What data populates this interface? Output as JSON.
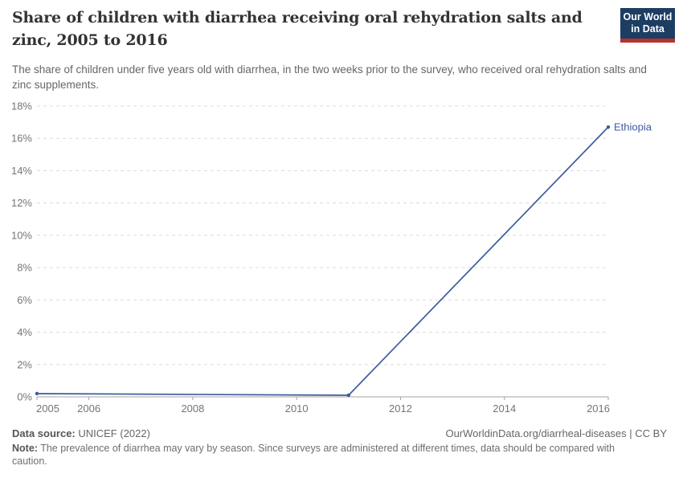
{
  "header": {
    "title": "Share of children with diarrhea receiving oral rehydration salts and zinc, 2005 to 2016",
    "subtitle": "The share of children under five years old with diarrhea, in the two weeks prior to the survey, who received oral rehydration salts and zinc supplements.",
    "logo": {
      "line1": "Our World",
      "line2": "in Data"
    }
  },
  "chart_data": {
    "type": "line",
    "title": "Share of children with diarrhea receiving oral rehydration salts and zinc, 2005 to 2016",
    "xlabel": "",
    "ylabel": "",
    "xlim": [
      2005,
      2016
    ],
    "ylim": [
      0,
      18
    ],
    "x_ticks": [
      2005,
      2006,
      2008,
      2010,
      2012,
      2014,
      2016
    ],
    "y_ticks": [
      0,
      2,
      4,
      6,
      8,
      10,
      12,
      14,
      16,
      18
    ],
    "y_tick_suffix": "%",
    "grid": "horizontal-dashed",
    "legend": "end-of-line-label",
    "series": [
      {
        "name": "Ethiopia",
        "color": "#3d5c9d",
        "points": [
          {
            "x": 2005,
            "y": 0.2
          },
          {
            "x": 2011,
            "y": 0.1
          },
          {
            "x": 2016,
            "y": 16.7
          }
        ]
      }
    ]
  },
  "footer": {
    "source_label": "Data source:",
    "source_value": " UNICEF (2022)",
    "link": "OurWorldinData.org/diarrheal-diseases | CC BY",
    "note_label": "Note:",
    "note_value": " The prevalence of diarrhea may vary by season. Since surveys are administered at different times, data should be compared with caution."
  },
  "colors": {
    "line": "#3d5c9d",
    "grid": "#dcdcdc",
    "axis": "#a3a3a3",
    "tick_text": "#757575",
    "logo_bg": "#1d3d63",
    "logo_red": "#b5332b"
  }
}
